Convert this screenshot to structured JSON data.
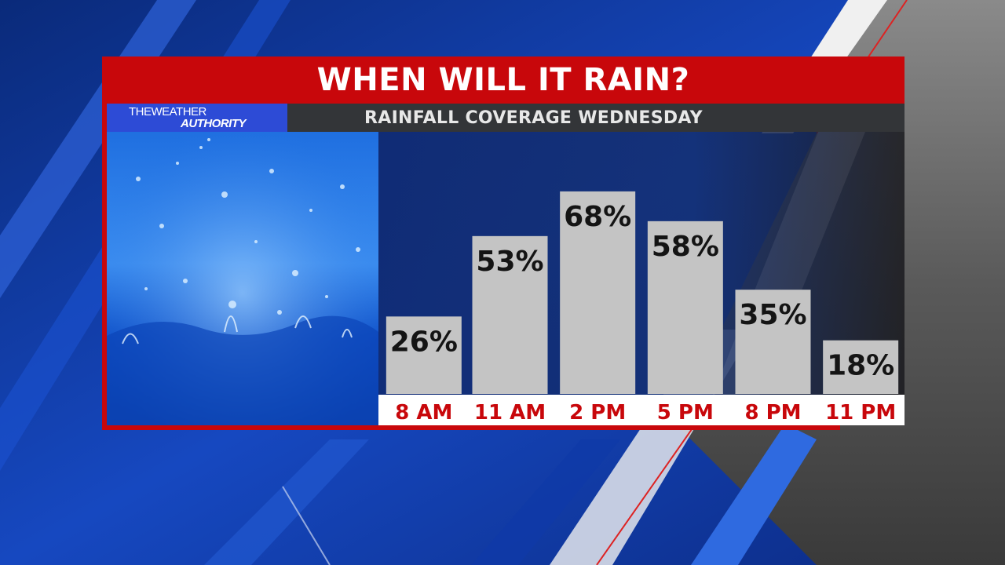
{
  "header": {
    "title": "WHEN WILL IT RAIN?",
    "subtitle": "RAINFALL COVERAGE WEDNESDAY"
  },
  "logo": {
    "line1": "THEWEATHER",
    "line2": "AUTHORITY"
  },
  "colors": {
    "accent_red": "#c8070b",
    "bar_gray": "#c4c4c4",
    "label_red": "#c8070b",
    "logo_blue": "#2d4bd6"
  },
  "chart_data": {
    "type": "bar",
    "title": "WHEN WILL IT RAIN?",
    "subtitle": "RAINFALL COVERAGE WEDNESDAY",
    "categories": [
      "8 AM",
      "11 AM",
      "2 PM",
      "5 PM",
      "8 PM",
      "11 PM"
    ],
    "values": [
      26,
      53,
      68,
      58,
      35,
      18
    ],
    "value_labels": [
      "26%",
      "53%",
      "68%",
      "58%",
      "35%",
      "18%"
    ],
    "ylim": [
      0,
      88
    ],
    "grid": false,
    "legend": "none"
  }
}
